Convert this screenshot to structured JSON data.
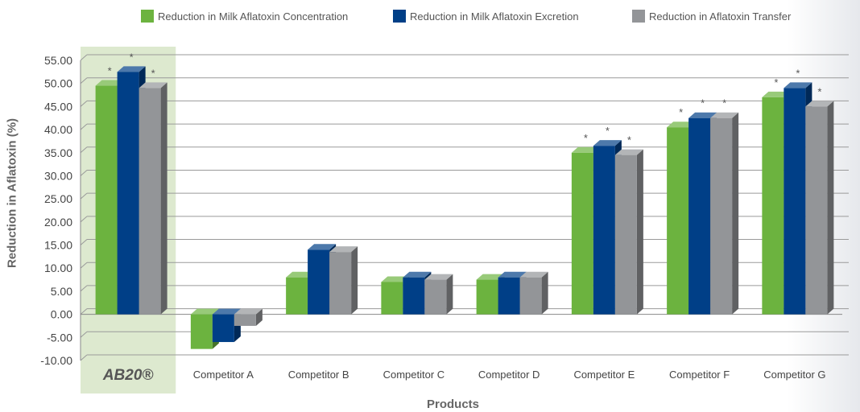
{
  "chart_data": {
    "type": "bar",
    "title": "",
    "xlabel": "Products",
    "ylabel": "Reduction in Aflatoxin (%)",
    "ylim": [
      -10,
      55
    ],
    "yticks": [
      "55.00",
      "50.00",
      "45.00",
      "40.00",
      "35.00",
      "30.00",
      "25.00",
      "20.00",
      "15.00",
      "10.00",
      "5.00",
      "0.00",
      "-5.00",
      "-10.00"
    ],
    "categories": [
      "AB20®",
      "Competitor A",
      "Competitor B",
      "Competitor C",
      "Competitor D",
      "Competitor E",
      "Competitor F",
      "Competitor G"
    ],
    "highlight_category": "AB20®",
    "legend_position": "top",
    "series": [
      {
        "name": "Reduction in Milk Aflatoxin Concentration",
        "color": "#6cb33f",
        "values": [
          49.5,
          -7.5,
          8,
          7,
          7.5,
          35,
          40.5,
          47
        ],
        "significant": [
          true,
          false,
          false,
          false,
          false,
          true,
          true,
          true
        ]
      },
      {
        "name": "Reduction in Milk Aflatoxin Excretion",
        "color": "#003f87",
        "values": [
          52.5,
          -6,
          14,
          8,
          8,
          36.5,
          42.5,
          49
        ],
        "significant": [
          true,
          false,
          false,
          false,
          false,
          true,
          true,
          true
        ]
      },
      {
        "name": "Reduction in Aflatoxin Transfer",
        "color": "#939598",
        "values": [
          49,
          -2.5,
          13.5,
          7.5,
          8,
          34.5,
          42.5,
          45
        ],
        "significant": [
          true,
          false,
          false,
          false,
          false,
          true,
          true,
          true
        ]
      }
    ],
    "significance_marker": "*",
    "grid": true
  }
}
